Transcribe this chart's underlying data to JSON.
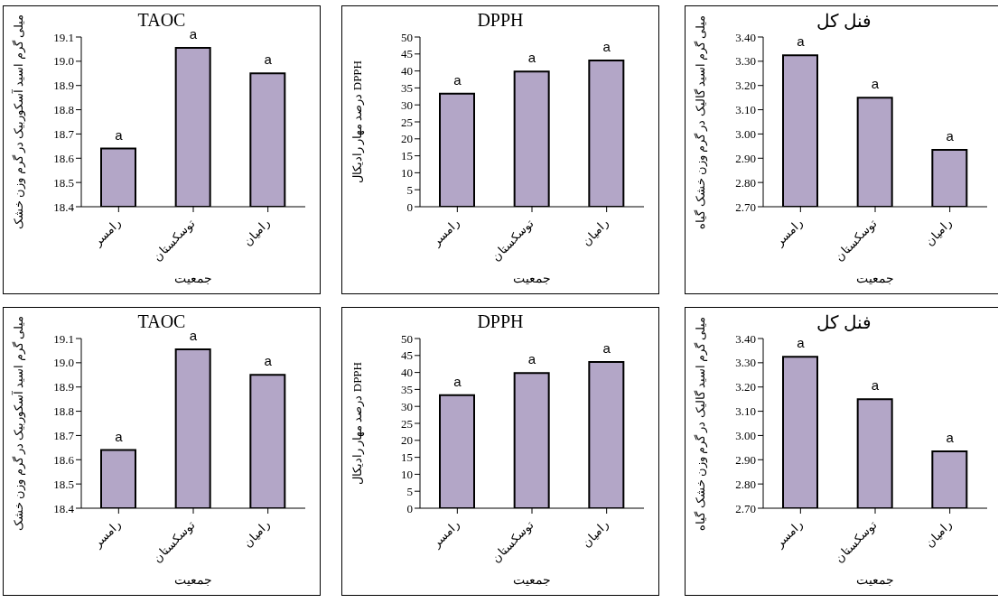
{
  "chart_data": [
    {
      "type": "bar",
      "title": "TAOC",
      "xlabel": "جمعیت",
      "ylabel": "میلی گرم اسید آسکوربیک در گرم وزن خشک",
      "categories": [
        "رامسر",
        "توسکستان",
        "رامیان"
      ],
      "values": [
        18.64,
        19.055,
        18.95
      ],
      "color": "#b3a6c7",
      "ylim": [
        18.4,
        19.1
      ],
      "yticks": [
        18.4,
        18.5,
        18.6,
        18.7,
        18.8,
        18.9,
        {
          "value": 19,
          "label": "19.0"
        },
        19.1
      ],
      "grid": false,
      "legend": false,
      "annotations": [
        {
          "text": "a",
          "x": "رامسر",
          "y": 18.64
        },
        {
          "text": "a",
          "x": "توسکستان",
          "y": 19.055
        },
        {
          "text": "a",
          "x": "رامیان",
          "y": 18.95
        }
      ]
    },
    {
      "type": "bar",
      "title": "DPPH",
      "xlabel": "جمعیت",
      "ylabel": "درصد مهار رادیکال DPPH",
      "categories": [
        "رامسر",
        "توسکستان",
        "رامیان"
      ],
      "values": [
        33.3,
        39.8,
        43.1
      ],
      "color": "#b3a6c7",
      "ylim": [
        0,
        50
      ],
      "yticks": [
        0,
        5,
        10,
        15,
        20,
        25,
        30,
        35,
        40,
        45,
        50
      ],
      "grid": false,
      "legend": false,
      "annotations": [
        {
          "text": "a",
          "x": "رامسر",
          "y": 33.3
        },
        {
          "text": "a",
          "x": "توسکستان",
          "y": 39.8
        },
        {
          "text": "a",
          "x": "رامیان",
          "y": 43.1
        }
      ]
    },
    {
      "type": "bar",
      "title": "فنل کل",
      "xlabel": "جمعیت",
      "ylabel": "میلی گرم اسید گالیک در گرم وزن خشک گیاه",
      "categories": [
        "رامسر",
        "توسکستان",
        "رامیان"
      ],
      "values": [
        3.325,
        3.15,
        2.935
      ],
      "color": "#b3a6c7",
      "ylim": [
        2.7,
        3.4
      ],
      "yticks": [
        {
          "value": 2.7,
          "label": "2.70"
        },
        {
          "value": 2.8,
          "label": "2.80"
        },
        {
          "value": 2.9,
          "label": "2.90"
        },
        {
          "value": 3,
          "label": "3.00"
        },
        {
          "value": 3.1,
          "label": "3.10"
        },
        {
          "value": 3.2,
          "label": "3.20"
        },
        {
          "value": 3.3,
          "label": "3.30"
        },
        {
          "value": 3.4,
          "label": "3.40"
        }
      ],
      "grid": false,
      "legend": false,
      "annotations": [
        {
          "text": "a",
          "x": "رامسر",
          "y": 3.325
        },
        {
          "text": "a",
          "x": "توسکستان",
          "y": 3.15
        },
        {
          "text": "a",
          "x": "رامیان",
          "y": 2.935
        }
      ]
    },
    {
      "type": "bar",
      "title": "TAOC",
      "xlabel": "جمعیت",
      "ylabel": "میلی گرم اسید آسکوربیک در گرم وزن خشک",
      "categories": [
        "رامسر",
        "توسکستان",
        "رامیان"
      ],
      "values": [
        18.64,
        19.055,
        18.95
      ],
      "color": "#b3a6c7",
      "ylim": [
        18.4,
        19.1
      ],
      "yticks": [
        18.4,
        18.5,
        18.6,
        18.7,
        18.8,
        18.9,
        {
          "value": 19,
          "label": "19.0"
        },
        19.1
      ],
      "grid": false,
      "legend": false,
      "annotations": [
        {
          "text": "a",
          "x": "رامسر",
          "y": 18.64
        },
        {
          "text": "a",
          "x": "توسکستان",
          "y": 19.055
        },
        {
          "text": "a",
          "x": "رامیان",
          "y": 18.95
        }
      ]
    },
    {
      "type": "bar",
      "title": "DPPH",
      "xlabel": "جمعیت",
      "ylabel": "درصد مهار رادیکال DPPH",
      "categories": [
        "رامسر",
        "توسکستان",
        "رامیان"
      ],
      "values": [
        33.3,
        39.8,
        43.1
      ],
      "color": "#b3a6c7",
      "ylim": [
        0,
        50
      ],
      "yticks": [
        0,
        5,
        10,
        15,
        20,
        25,
        30,
        35,
        40,
        45,
        50
      ],
      "grid": false,
      "legend": false,
      "annotations": [
        {
          "text": "a",
          "x": "رامسر",
          "y": 33.3
        },
        {
          "text": "a",
          "x": "توسکستان",
          "y": 39.8
        },
        {
          "text": "a",
          "x": "رامیان",
          "y": 43.1
        }
      ]
    },
    {
      "type": "bar",
      "title": "فنل کل",
      "xlabel": "جمعیت",
      "ylabel": "میلی گرم اسید گالیک در گرم وزن خشک گیاه",
      "categories": [
        "رامسر",
        "توسکستان",
        "رامیان"
      ],
      "values": [
        3.325,
        3.15,
        2.935
      ],
      "color": "#b3a6c7",
      "ylim": [
        2.7,
        3.4
      ],
      "yticks": [
        {
          "value": 2.7,
          "label": "2.70"
        },
        {
          "value": 2.8,
          "label": "2.80"
        },
        {
          "value": 2.9,
          "label": "2.90"
        },
        {
          "value": 3,
          "label": "3.00"
        },
        {
          "value": 3.1,
          "label": "3.10"
        },
        {
          "value": 3.2,
          "label": "3.20"
        },
        {
          "value": 3.3,
          "label": "3.30"
        },
        {
          "value": 3.4,
          "label": "3.40"
        }
      ],
      "grid": false,
      "legend": false,
      "annotations": [
        {
          "text": "a",
          "x": "رامسر",
          "y": 3.325
        },
        {
          "text": "a",
          "x": "توسکستان",
          "y": 3.15
        },
        {
          "text": "a",
          "x": "رامیان",
          "y": 2.935
        }
      ]
    }
  ]
}
